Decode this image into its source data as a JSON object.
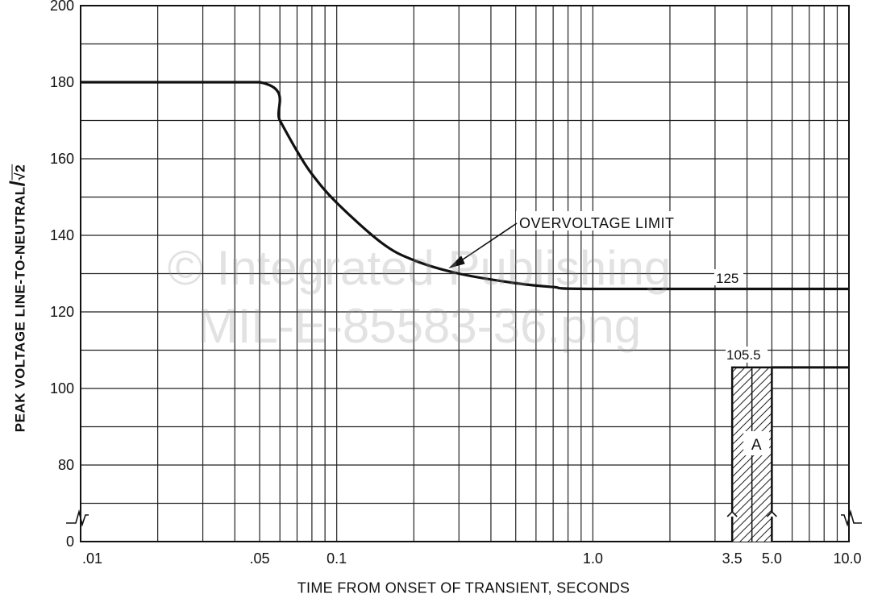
{
  "chart_data": {
    "type": "line",
    "xscale": "log",
    "xlim": [
      0.01,
      10.0
    ],
    "ylim": [
      0,
      200
    ],
    "xlabel": "TIME FROM ONSET OF TRANSIENT, SECONDS",
    "ylabel": "PEAK VOLTAGE LINE-TO-NEUTRAL",
    "ylabel_suffix": "√2",
    "grid": true,
    "x_tick_labels": [
      {
        "value": 0.01,
        "label": ".01"
      },
      {
        "value": 0.05,
        "label": ".05"
      },
      {
        "value": 0.1,
        "label": "0.1"
      },
      {
        "value": 1.0,
        "label": "1.0"
      },
      {
        "value": 3.5,
        "label": "3.5"
      },
      {
        "value": 5.0,
        "label": "5.0"
      },
      {
        "value": 10.0,
        "label": "10.0"
      }
    ],
    "y_tick_labels": [
      "0",
      "80",
      "100",
      "120",
      "140",
      "160",
      "180",
      "200"
    ],
    "y_break_below": 70,
    "series": [
      {
        "name": "OVERVOLTAGE LIMIT",
        "x": [
          0.01,
          0.05,
          0.06,
          0.07,
          0.08,
          0.1,
          0.15,
          0.2,
          0.3,
          0.5,
          0.7,
          1.0,
          10.0
        ],
        "y": [
          180,
          180,
          170,
          162,
          156,
          148.5,
          138,
          133.5,
          130,
          127.5,
          126.5,
          126,
          126
        ]
      }
    ],
    "annotations": [
      "OVERVOLTAGE LIMIT",
      "125",
      "105.5",
      "A"
    ],
    "region_a": {
      "x_start": 3.5,
      "x_end": 5.0,
      "y_top": 105.5,
      "label": "A"
    },
    "line_105_5": {
      "x_start": 5.0,
      "x_end": 10.0,
      "y": 105.5
    }
  },
  "watermark": {
    "line1": "© Integrated Publishing",
    "line2": "MIL-E-85583-36.png"
  }
}
